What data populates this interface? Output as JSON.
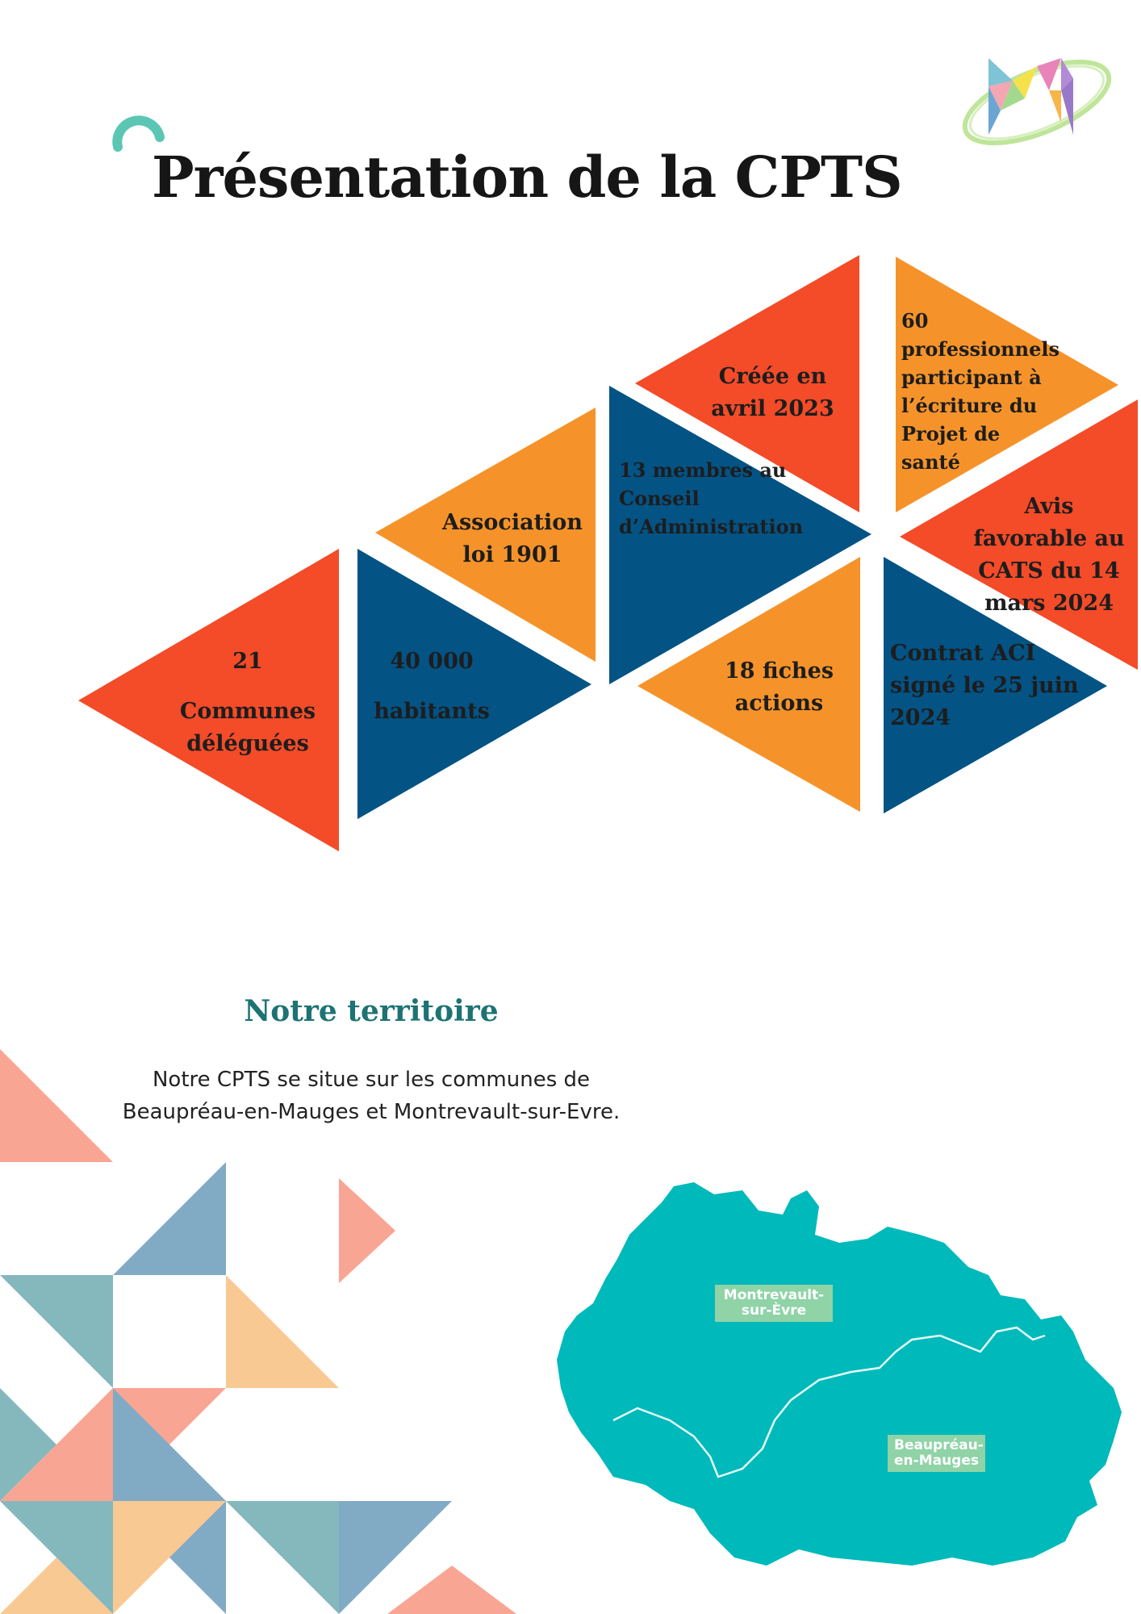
{
  "title": "Présentation de la CPTS",
  "colors": {
    "orange_red": "#f44b28",
    "orange": "#f5932a",
    "navy": "#035385",
    "teal": "#00b9ba",
    "heading_teal": "#1d7373",
    "map_label_bg": "#8fd3a7"
  },
  "triangles": {
    "communes_number": "21",
    "communes_label": "Communes déléguées",
    "habitants_number": "40 000",
    "habitants_label": "habitants",
    "association": "Association loi 1901",
    "membres": "13 membres au Conseil d’Administration",
    "creee": "Créée en avril 2023",
    "fiches": "18 fiches actions",
    "professionnels": "60 professionnels participant à l’écriture du Projet de santé",
    "avis": "Avis favorable au CATS du 14 mars 2024",
    "contrat": "Contrat ACI signé le 25 juin 2024"
  },
  "territory": {
    "heading": "Notre territoire",
    "text": "Notre CPTS se situe sur les communes de Beaupréau-en-Mauges et Montrevault-sur-Evre."
  },
  "map_labels": {
    "montrevault_line1": "Montrevault-",
    "montrevault_line2": "sur-Èvre",
    "beaupreau_line1": "Beaupréau-",
    "beaupreau_line2": "en-Mauges"
  },
  "icons": [
    "logo-icon",
    "ring-icon"
  ]
}
